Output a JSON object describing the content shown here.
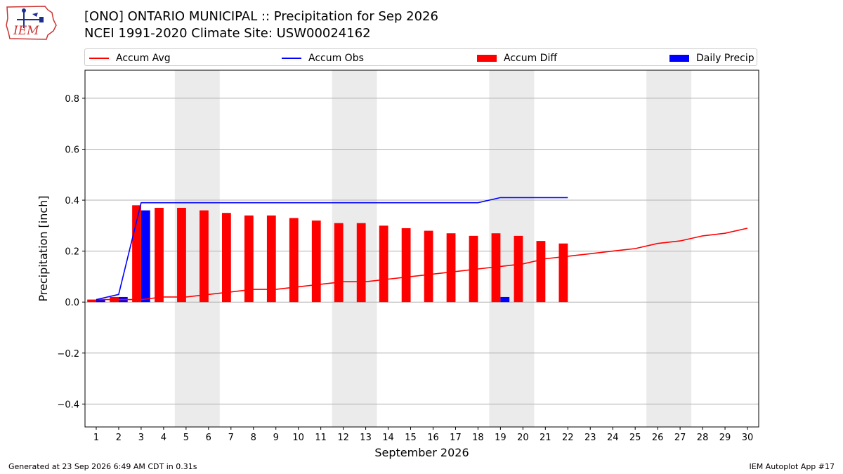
{
  "logo": {
    "text": "IEM",
    "colors": {
      "text": "#cc3333",
      "outline": "#cc3333",
      "icon": "#1b2f8f"
    }
  },
  "title": {
    "line1": "[ONO] ONTARIO MUNICIPAL :: Precipitation for Sep 2026",
    "line2": "NCEI 1991-2020 Climate Site: USW00024162"
  },
  "legend": [
    {
      "label": "Accum Avg",
      "kind": "line",
      "color": "#ff0000"
    },
    {
      "label": "Accum Obs",
      "kind": "line",
      "color": "#0000ff"
    },
    {
      "label": "Accum Diff",
      "kind": "bar",
      "color": "#ff0000"
    },
    {
      "label": "Daily Precip",
      "kind": "bar",
      "color": "#0000ff"
    }
  ],
  "chart_data": {
    "type": "bar",
    "xlabel": "September 2026",
    "ylabel": "Precipitation [inch]",
    "x": [
      1,
      2,
      3,
      4,
      5,
      6,
      7,
      8,
      9,
      10,
      11,
      12,
      13,
      14,
      15,
      16,
      17,
      18,
      19,
      20,
      21,
      22,
      23,
      24,
      25,
      26,
      27,
      28,
      29,
      30
    ],
    "xlim": [
      0.5,
      30.5
    ],
    "ylim": [
      -0.49,
      0.91
    ],
    "yticks": [
      -0.4,
      -0.2,
      0.0,
      0.2,
      0.4,
      0.6,
      0.8
    ],
    "ytick_labels": [
      "−0.4",
      "−0.2",
      "0.0",
      "0.2",
      "0.4",
      "0.6",
      "0.8"
    ],
    "grid": "horizontal",
    "legend_position": "top",
    "weekend_shading": [
      [
        4.5,
        6.5
      ],
      [
        11.5,
        13.5
      ],
      [
        18.5,
        20.5
      ],
      [
        25.5,
        27.5
      ]
    ],
    "series": [
      {
        "name": "Accum Avg",
        "kind": "line",
        "color": "#ff0000",
        "x": [
          1,
          2,
          3,
          4,
          5,
          6,
          7,
          8,
          9,
          10,
          11,
          12,
          13,
          14,
          15,
          16,
          17,
          18,
          19,
          20,
          21,
          22,
          23,
          24,
          25,
          26,
          27,
          28,
          29,
          30
        ],
        "values": [
          0.01,
          0.01,
          0.01,
          0.02,
          0.02,
          0.03,
          0.04,
          0.05,
          0.05,
          0.06,
          0.07,
          0.08,
          0.08,
          0.09,
          0.1,
          0.11,
          0.12,
          0.13,
          0.14,
          0.15,
          0.17,
          0.18,
          0.19,
          0.2,
          0.21,
          0.23,
          0.24,
          0.26,
          0.27,
          0.29
        ]
      },
      {
        "name": "Accum Obs",
        "kind": "line",
        "color": "#0000ff",
        "x": [
          1,
          2,
          3,
          4,
          5,
          6,
          7,
          8,
          9,
          10,
          11,
          12,
          13,
          14,
          15,
          16,
          17,
          18,
          19,
          20,
          21,
          22
        ],
        "values": [
          0.01,
          0.03,
          0.39,
          0.39,
          0.39,
          0.39,
          0.39,
          0.39,
          0.39,
          0.39,
          0.39,
          0.39,
          0.39,
          0.39,
          0.39,
          0.39,
          0.39,
          0.39,
          0.41,
          0.41,
          0.41,
          0.41
        ]
      },
      {
        "name": "Accum Diff",
        "kind": "bar",
        "color": "#ff0000",
        "x": [
          1,
          2,
          3,
          4,
          5,
          6,
          7,
          8,
          9,
          10,
          11,
          12,
          13,
          14,
          15,
          16,
          17,
          18,
          19,
          20,
          21,
          22
        ],
        "values": [
          0.01,
          0.02,
          0.38,
          0.37,
          0.37,
          0.36,
          0.35,
          0.34,
          0.34,
          0.33,
          0.32,
          0.31,
          0.31,
          0.3,
          0.29,
          0.28,
          0.27,
          0.26,
          0.27,
          0.26,
          0.24,
          0.23
        ]
      },
      {
        "name": "Daily Precip",
        "kind": "bar",
        "color": "#0000ff",
        "x": [
          1,
          2,
          3,
          19
        ],
        "values": [
          0.01,
          0.02,
          0.36,
          0.02
        ]
      }
    ]
  },
  "footer": {
    "left": "Generated at 23 Sep 2026 6:49 AM CDT in 0.31s",
    "right": "IEM Autoplot App #17"
  }
}
